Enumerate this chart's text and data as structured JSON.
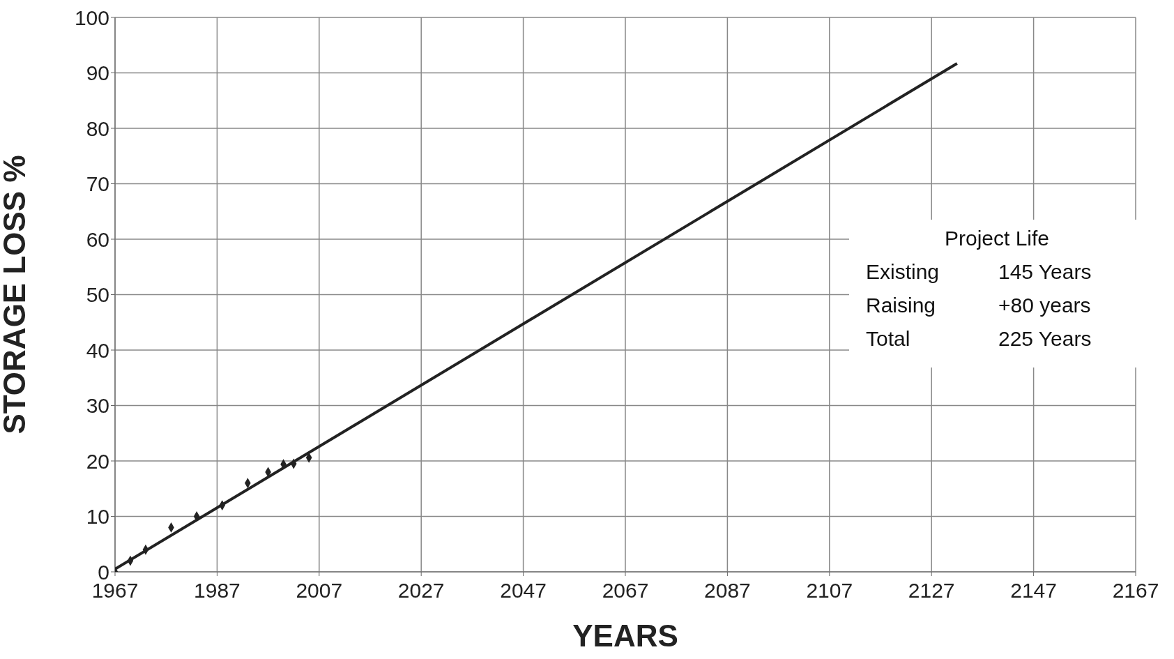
{
  "chart_data": {
    "type": "scatter",
    "xlabel": "YEARS",
    "ylabel": "STORAGE LOSS %",
    "xlim": [
      1967,
      2167
    ],
    "xticks": [
      1967,
      1987,
      2007,
      2027,
      2047,
      2067,
      2087,
      2107,
      2127,
      2147,
      2167
    ],
    "ylim": [
      0,
      100
    ],
    "yticks": [
      0,
      10,
      20,
      30,
      40,
      50,
      60,
      70,
      80,
      90,
      100
    ],
    "grid": true,
    "marker": "diamond",
    "series": [
      {
        "color": "#222222",
        "x": [
          1967,
          1970,
          1973,
          1978,
          1983,
          1988,
          1993,
          1997,
          2000,
          2002,
          2005
        ],
        "values": [
          0,
          2,
          4,
          8,
          10,
          12,
          16,
          18,
          19.4,
          19.5,
          20.6
        ]
      },
      {
        "type": "line",
        "color": "#222222",
        "x": [
          1967,
          2132
        ],
        "values": [
          0.5,
          91.7
        ],
        "marker": "none",
        "line_style": "solid"
      }
    ],
    "annotations": [
      "Project Life",
      "Existing",
      "145 Years",
      "Raising",
      "+80 years",
      "Total",
      "225 Years"
    ]
  }
}
